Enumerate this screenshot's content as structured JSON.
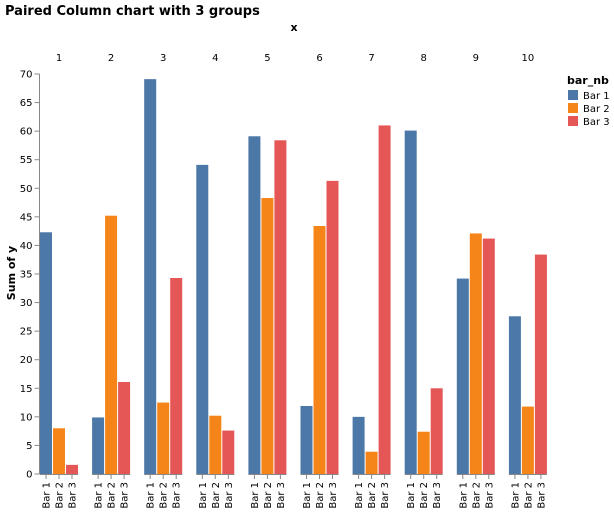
{
  "chart_data": {
    "type": "bar",
    "title": "Paired Column chart with 3 groups",
    "column_title": "x",
    "ylabel": "Sum of y",
    "ylim": [
      0,
      70
    ],
    "y_ticks": [
      0,
      5,
      10,
      15,
      20,
      25,
      30,
      35,
      40,
      45,
      50,
      55,
      60,
      65,
      70
    ],
    "categories": [
      "1",
      "2",
      "3",
      "4",
      "5",
      "6",
      "7",
      "8",
      "9",
      "10"
    ],
    "sub_categories": [
      "Bar 1",
      "Bar 2",
      "Bar 3"
    ],
    "legend": {
      "title": "bar_nb",
      "position": "right"
    },
    "grid": false,
    "series": [
      {
        "name": "Bar 1",
        "color": "#4c78a8",
        "values": [
          42.3,
          9.9,
          69.1,
          54.1,
          59.1,
          11.9,
          10.0,
          60.1,
          34.2,
          27.6
        ]
      },
      {
        "name": "Bar 2",
        "color": "#f58518",
        "values": [
          8.0,
          45.2,
          12.5,
          10.2,
          48.3,
          43.4,
          3.9,
          7.4,
          42.1,
          11.8
        ]
      },
      {
        "name": "Bar 3",
        "color": "#e45756",
        "values": [
          1.6,
          16.1,
          34.3,
          7.6,
          58.4,
          51.3,
          61.0,
          15.0,
          41.2,
          38.4
        ]
      }
    ]
  }
}
